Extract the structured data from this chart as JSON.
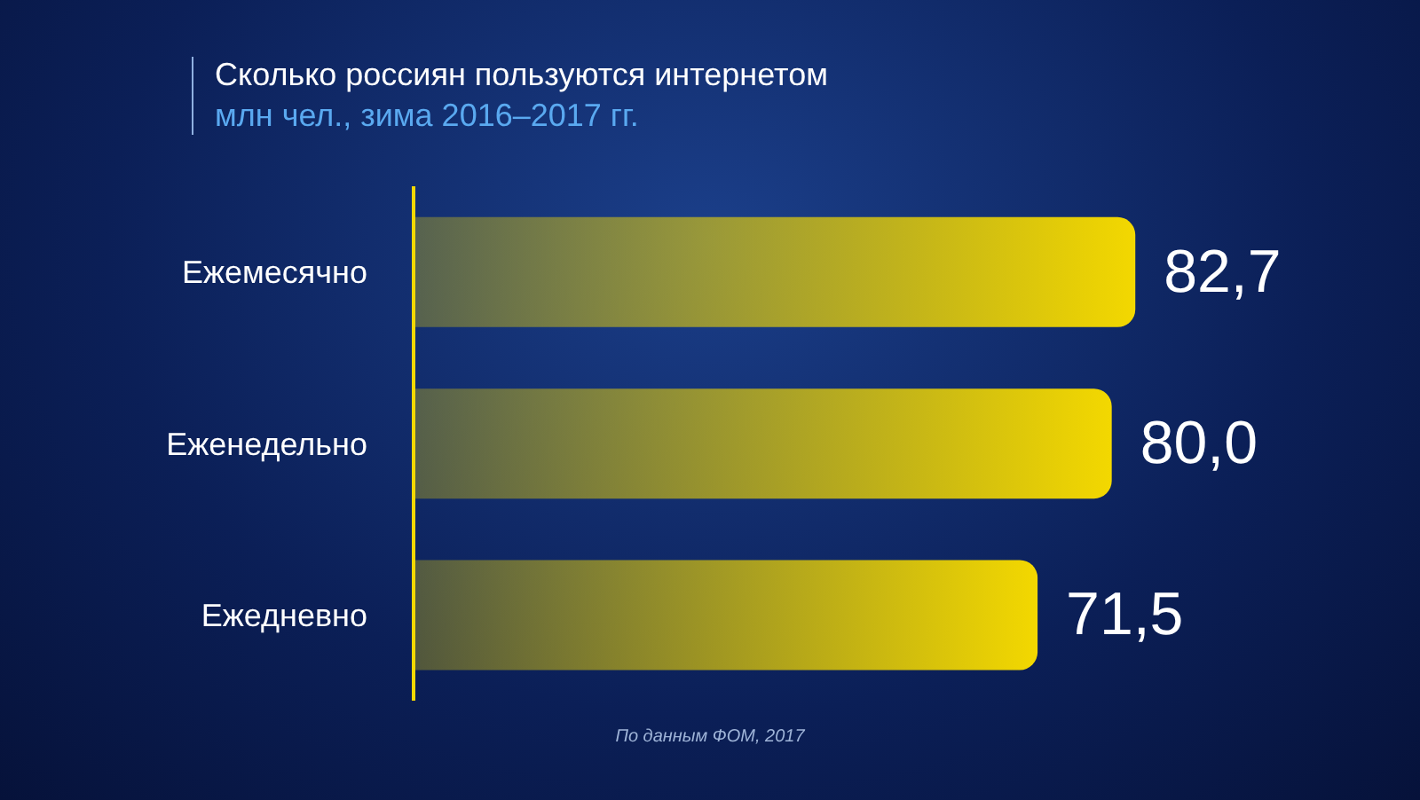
{
  "chart_data": {
    "type": "bar",
    "orientation": "horizontal",
    "title": "Сколько россиян пользуются интернетом",
    "subtitle": "млн чел., зима 2016–2017 гг.",
    "categories": [
      "Ежемесячно",
      "Еженедельно",
      "Ежедневно"
    ],
    "values": [
      82.7,
      80.0,
      71.5
    ],
    "value_labels": [
      "82,7",
      "80,0",
      "71,5"
    ],
    "color": "#f3d800",
    "annotations": [
      "По данным ФОМ, 2017"
    ]
  }
}
